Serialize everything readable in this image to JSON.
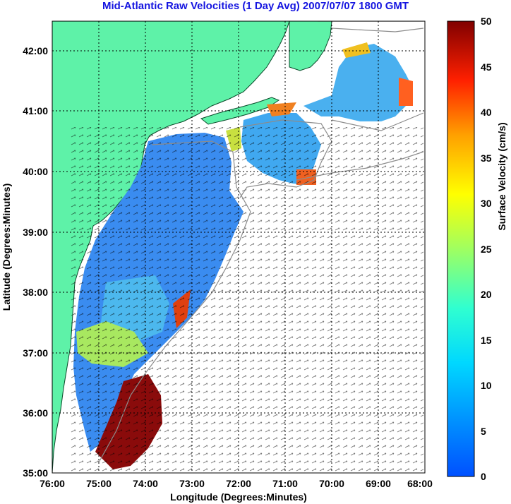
{
  "title": "Mid-Atlantic Raw Velocities (1 Day Avg) 2007/07/07 1800 GMT",
  "axes": {
    "xlabel": "Longitude (Degrees:Minutes)",
    "ylabel": "Latitude (Degrees:Minutes)",
    "x_ticks": [
      "76:00",
      "75:00",
      "74:00",
      "73:00",
      "72:00",
      "71:00",
      "70:00",
      "69:00",
      "68:00"
    ],
    "y_ticks": [
      "42:00",
      "41:00",
      "40:00",
      "39:00",
      "38:00",
      "37:00",
      "36:00",
      "35:00"
    ]
  },
  "colorbar": {
    "label": "Surface Velocity (cm/s)",
    "ticks": [
      "50",
      "45",
      "40",
      "35",
      "30",
      "25",
      "20",
      "15",
      "10",
      "5",
      "0"
    ],
    "range": [
      0,
      50
    ]
  },
  "colors": {
    "land": "#5ef2a8",
    "coast": "#0a4a2a",
    "bathymetry": "#8c8c8c",
    "title": "#1515e0"
  }
}
